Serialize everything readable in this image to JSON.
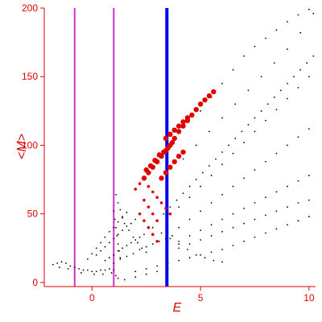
{
  "chart_data": {
    "type": "scatter",
    "title": "",
    "xlabel": "E",
    "ylabel": "<M>",
    "xlim": [
      -2.2,
      10.3
    ],
    "ylim": [
      -3,
      200
    ],
    "x_ticks": [
      0,
      5,
      10
    ],
    "y_ticks": [
      0,
      50,
      100,
      150,
      200
    ],
    "grid": false,
    "legend": "none",
    "colors": {
      "axis": "#e00000",
      "black_points": "#000000",
      "red_points": "#e00000",
      "magenta_lines": "#cc33cc",
      "blue_line": "#0000ee"
    },
    "vertical_lines": [
      {
        "x": -0.8,
        "color": "magenta"
      },
      {
        "x": 1.0,
        "color": "magenta"
      },
      {
        "x": 3.45,
        "color": "blue"
      }
    ],
    "series": [
      {
        "marker": "black-dot",
        "points": [
          [
            -1.8,
            13
          ],
          [
            -1.6,
            14
          ],
          [
            -1.4,
            15
          ],
          [
            -1.2,
            14
          ],
          [
            -1.0,
            12
          ],
          [
            -0.8,
            11
          ],
          [
            -0.6,
            10
          ],
          [
            -0.4,
            9
          ],
          [
            -0.2,
            9
          ],
          [
            0.0,
            8
          ],
          [
            0.2,
            8
          ],
          [
            0.4,
            9
          ],
          [
            0.6,
            9
          ],
          [
            0.8,
            10
          ],
          [
            -1.5,
            11
          ],
          [
            -1.1,
            10
          ],
          [
            -0.5,
            7
          ],
          [
            0.1,
            6
          ],
          [
            0.5,
            6
          ],
          [
            0.9,
            7
          ],
          [
            -0.2,
            17
          ],
          [
            0.0,
            21
          ],
          [
            0.2,
            25
          ],
          [
            0.4,
            29
          ],
          [
            0.6,
            33
          ],
          [
            0.8,
            37
          ],
          [
            1.0,
            40
          ],
          [
            1.2,
            44
          ],
          [
            1.4,
            47
          ],
          [
            1.6,
            51
          ],
          [
            0.2,
            20
          ],
          [
            0.4,
            23
          ],
          [
            0.6,
            26
          ],
          [
            0.8,
            29
          ],
          [
            1.0,
            32
          ],
          [
            1.2,
            35
          ],
          [
            1.4,
            38
          ],
          [
            1.6,
            41
          ],
          [
            1.8,
            43
          ],
          [
            2.0,
            46
          ],
          [
            0.6,
            16
          ],
          [
            0.8,
            18
          ],
          [
            1.0,
            20
          ],
          [
            1.2,
            23
          ],
          [
            1.4,
            25
          ],
          [
            1.6,
            27
          ],
          [
            1.8,
            29
          ],
          [
            2.0,
            31
          ],
          [
            2.2,
            33
          ],
          [
            2.4,
            35
          ],
          [
            1.0,
            14
          ],
          [
            1.3,
            17
          ],
          [
            1.6,
            19
          ],
          [
            1.9,
            21
          ],
          [
            2.2,
            24
          ],
          [
            2.5,
            26
          ],
          [
            2.8,
            28
          ],
          [
            3.1,
            30
          ],
          [
            3.4,
            32
          ],
          [
            3.7,
            34
          ],
          [
            1.1,
            64
          ],
          [
            1.2,
            58
          ],
          [
            1.3,
            53
          ],
          [
            1.4,
            48
          ],
          [
            1.5,
            43
          ],
          [
            1.7,
            38
          ],
          [
            1.9,
            33
          ],
          [
            2.1,
            29
          ],
          [
            2.3,
            25
          ],
          [
            2.5,
            22
          ],
          [
            1.0,
            52
          ],
          [
            1.05,
            46
          ],
          [
            1.1,
            40
          ],
          [
            1.15,
            34
          ],
          [
            1.2,
            28
          ],
          [
            1.25,
            23
          ],
          [
            1.3,
            18
          ],
          [
            1.0,
            9
          ],
          [
            1.1,
            5
          ],
          [
            1.2,
            3
          ],
          [
            4.0,
            25
          ],
          [
            4.5,
            28
          ],
          [
            5.0,
            31
          ],
          [
            5.5,
            34
          ],
          [
            6.0,
            37
          ],
          [
            6.5,
            40
          ],
          [
            7.0,
            43
          ],
          [
            7.5,
            46
          ],
          [
            8.0,
            49
          ],
          [
            8.5,
            52
          ],
          [
            9.0,
            55
          ],
          [
            9.5,
            58
          ],
          [
            10.0,
            60
          ],
          [
            4.0,
            30
          ],
          [
            4.5,
            34
          ],
          [
            5.0,
            38
          ],
          [
            5.5,
            42
          ],
          [
            6.0,
            46
          ],
          [
            6.5,
            50
          ],
          [
            7.0,
            54
          ],
          [
            7.5,
            58
          ],
          [
            8.0,
            62
          ],
          [
            8.5,
            66
          ],
          [
            9.0,
            70
          ],
          [
            9.5,
            74
          ],
          [
            10.0,
            78
          ],
          [
            4.0,
            40
          ],
          [
            4.5,
            46
          ],
          [
            5.0,
            52
          ],
          [
            5.5,
            58
          ],
          [
            6.0,
            64
          ],
          [
            6.5,
            70
          ],
          [
            7.0,
            76
          ],
          [
            7.5,
            82
          ],
          [
            8.0,
            88
          ],
          [
            8.5,
            94
          ],
          [
            9.0,
            100
          ],
          [
            9.5,
            106
          ],
          [
            10.0,
            112
          ],
          [
            4.0,
            55
          ],
          [
            4.5,
            62
          ],
          [
            5.0,
            70
          ],
          [
            5.5,
            78
          ],
          [
            6.0,
            86
          ],
          [
            6.5,
            94
          ],
          [
            7.0,
            102
          ],
          [
            7.5,
            110
          ],
          [
            8.0,
            118
          ],
          [
            8.5,
            126
          ],
          [
            9.0,
            134
          ],
          [
            9.5,
            142
          ],
          [
            10.0,
            150
          ],
          [
            4.2,
            90
          ],
          [
            4.8,
            100
          ],
          [
            5.4,
            110
          ],
          [
            6.0,
            120
          ],
          [
            6.6,
            130
          ],
          [
            7.2,
            140
          ],
          [
            7.8,
            150
          ],
          [
            8.4,
            160
          ],
          [
            9.0,
            170
          ],
          [
            9.6,
            182
          ],
          [
            10.2,
            196
          ],
          [
            5.0,
            125
          ],
          [
            5.5,
            135
          ],
          [
            6.0,
            145
          ],
          [
            6.5,
            155
          ],
          [
            7.0,
            165
          ],
          [
            7.5,
            172
          ],
          [
            8.0,
            178
          ],
          [
            8.5,
            184
          ],
          [
            9.0,
            190
          ],
          [
            9.5,
            195
          ],
          [
            10.0,
            199
          ],
          [
            3.0,
            45
          ],
          [
            3.3,
            50
          ],
          [
            3.6,
            55
          ],
          [
            3.9,
            60
          ],
          [
            4.2,
            65
          ],
          [
            4.5,
            70
          ],
          [
            4.8,
            75
          ],
          [
            5.1,
            80
          ],
          [
            5.4,
            85
          ],
          [
            5.7,
            90
          ],
          [
            6.0,
            95
          ],
          [
            6.3,
            100
          ],
          [
            6.6,
            105
          ],
          [
            6.9,
            110
          ],
          [
            7.2,
            115
          ],
          [
            7.5,
            120
          ],
          [
            7.8,
            125
          ],
          [
            8.1,
            130
          ],
          [
            8.4,
            135
          ],
          [
            8.7,
            140
          ],
          [
            9.0,
            145
          ],
          [
            9.3,
            150
          ],
          [
            9.6,
            155
          ],
          [
            9.9,
            160
          ],
          [
            10.2,
            165
          ],
          [
            2.8,
            40
          ],
          [
            3.2,
            36
          ],
          [
            3.6,
            32
          ],
          [
            4.0,
            28
          ],
          [
            4.4,
            24
          ],
          [
            4.8,
            20
          ],
          [
            5.2,
            18
          ],
          [
            5.6,
            16
          ],
          [
            6.0,
            15
          ],
          [
            2.0,
            8
          ],
          [
            2.5,
            10
          ],
          [
            3.0,
            12
          ],
          [
            3.5,
            14
          ],
          [
            4.0,
            16
          ],
          [
            4.5,
            18
          ],
          [
            5.0,
            20
          ],
          [
            5.5,
            22
          ],
          [
            6.0,
            24
          ],
          [
            6.5,
            27
          ],
          [
            7.0,
            30
          ],
          [
            7.5,
            33
          ],
          [
            8.0,
            36
          ],
          [
            8.5,
            39
          ],
          [
            9.0,
            42
          ],
          [
            9.5,
            45
          ],
          [
            10.0,
            48
          ],
          [
            1.5,
            2
          ],
          [
            2.0,
            4
          ],
          [
            2.5,
            6
          ],
          [
            3.0,
            8
          ],
          [
            3.5,
            10
          ]
        ]
      },
      {
        "marker": "red-dot",
        "points": [
          [
            2.0,
            68
          ],
          [
            2.2,
            72
          ],
          [
            2.4,
            76
          ],
          [
            2.6,
            80
          ],
          [
            2.8,
            84
          ],
          [
            3.0,
            88
          ],
          [
            3.2,
            92
          ],
          [
            3.4,
            96
          ],
          [
            3.6,
            100
          ],
          [
            3.8,
            105
          ],
          [
            4.0,
            110
          ],
          [
            4.2,
            114
          ],
          [
            4.4,
            118
          ],
          [
            4.6,
            122
          ],
          [
            4.8,
            126
          ],
          [
            5.0,
            130
          ],
          [
            5.2,
            133
          ],
          [
            5.4,
            136
          ],
          [
            5.6,
            139
          ],
          [
            2.5,
            82
          ],
          [
            2.7,
            85
          ],
          [
            2.9,
            89
          ],
          [
            3.1,
            93
          ],
          [
            3.3,
            95
          ],
          [
            3.5,
            98
          ],
          [
            3.7,
            102
          ],
          [
            2.6,
            70
          ],
          [
            2.8,
            66
          ],
          [
            3.0,
            62
          ],
          [
            3.2,
            58
          ],
          [
            3.4,
            54
          ],
          [
            3.6,
            50
          ],
          [
            2.4,
            60
          ],
          [
            2.6,
            55
          ],
          [
            2.8,
            50
          ],
          [
            3.0,
            45
          ],
          [
            2.2,
            50
          ],
          [
            2.4,
            45
          ],
          [
            2.6,
            40
          ],
          [
            2.8,
            35
          ],
          [
            3.0,
            30
          ],
          [
            3.4,
            105
          ],
          [
            3.6,
            108
          ],
          [
            3.8,
            111
          ],
          [
            4.0,
            114
          ],
          [
            4.2,
            117
          ],
          [
            4.4,
            120
          ],
          [
            3.2,
            76
          ],
          [
            3.4,
            80
          ],
          [
            3.6,
            84
          ],
          [
            3.8,
            88
          ],
          [
            4.0,
            92
          ],
          [
            4.2,
            95
          ]
        ]
      }
    ]
  }
}
